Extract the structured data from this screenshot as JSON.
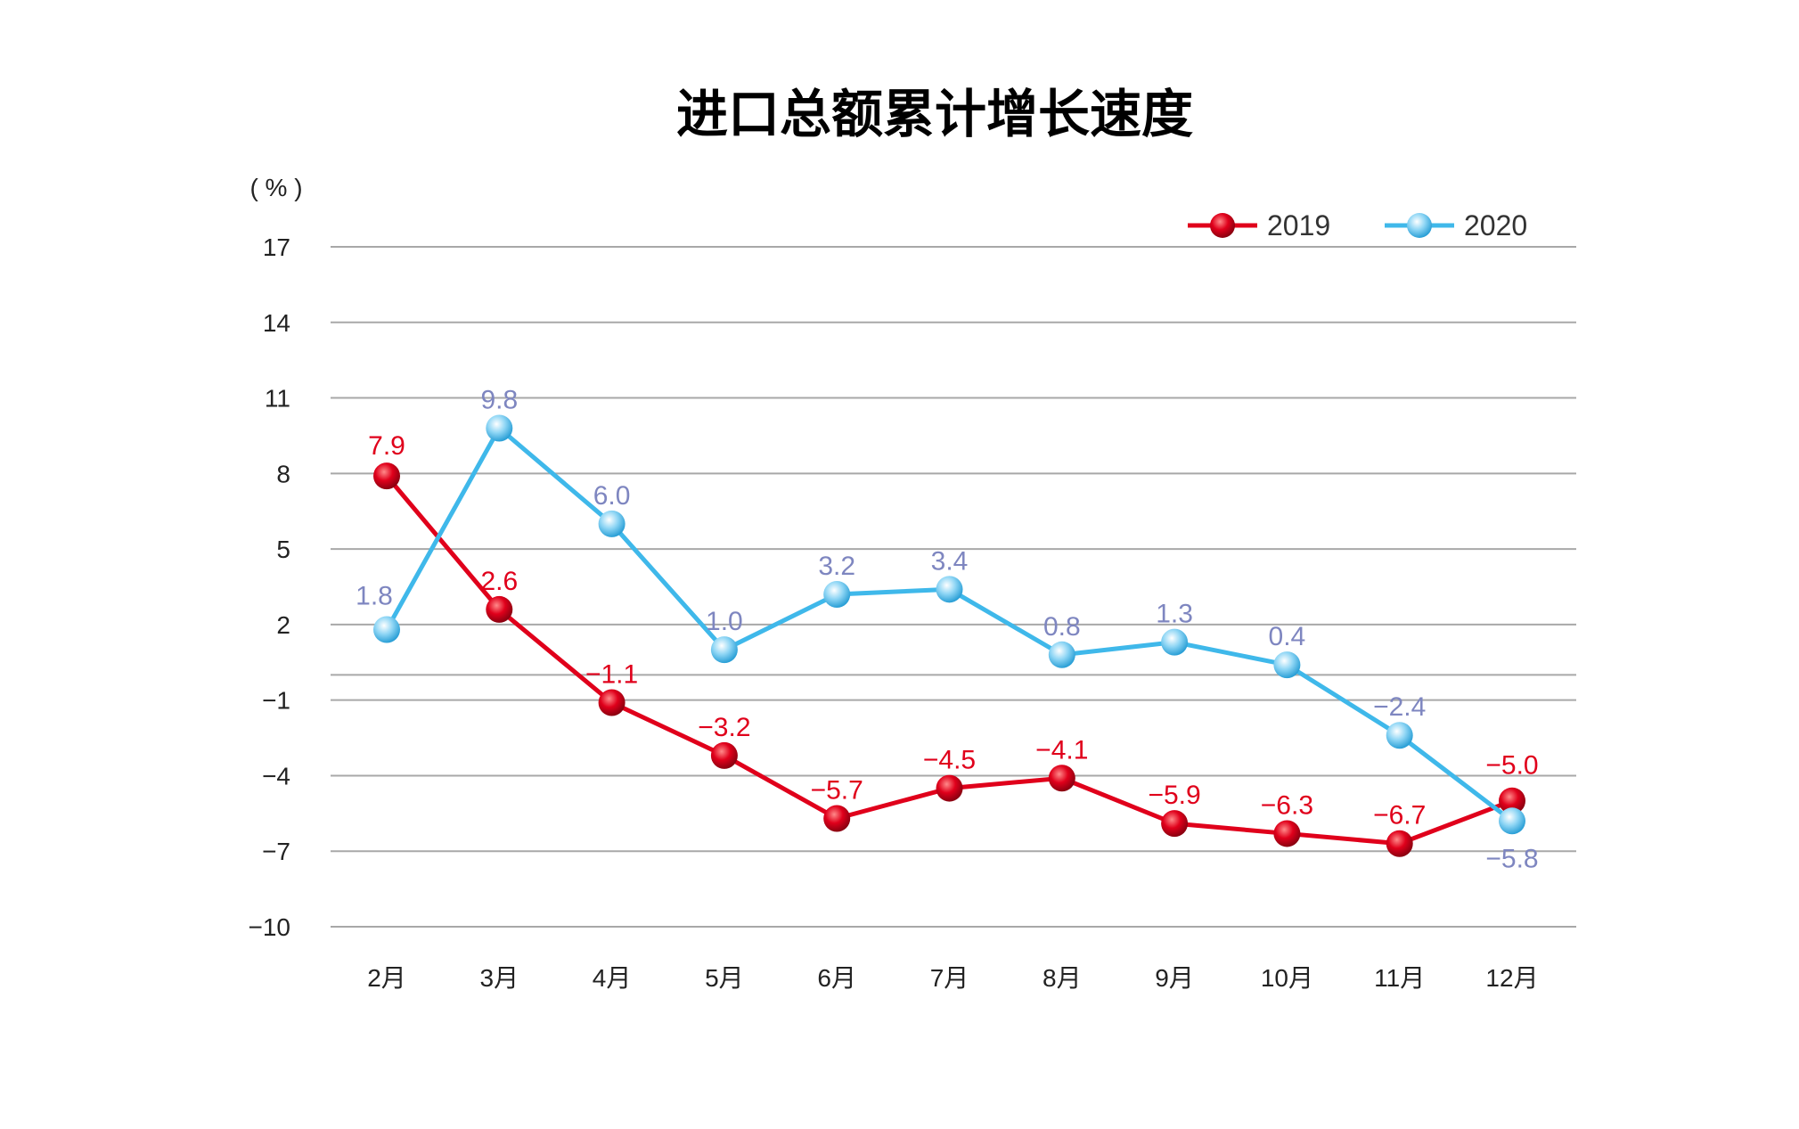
{
  "chart_data": {
    "type": "line",
    "title": "进口总额累计增长速度",
    "ylabel": "( % )",
    "xlabel": "",
    "categories": [
      "2月",
      "3月",
      "4月",
      "5月",
      "6月",
      "7月",
      "8月",
      "9月",
      "10月",
      "11月",
      "12月"
    ],
    "y_ticks": [
      17,
      14,
      11,
      8,
      5,
      2,
      -1,
      -4,
      -7,
      -10
    ],
    "y_tick_labels": [
      "17",
      "14",
      "11",
      "8",
      "5",
      "2",
      "−1",
      "−4",
      "−7",
      "−10"
    ],
    "ylim": [
      -10,
      17
    ],
    "grid": true,
    "legend": "top-right",
    "series": [
      {
        "name": "2019",
        "color": "#e0001b",
        "values": [
          7.9,
          2.6,
          -1.1,
          -3.2,
          -5.7,
          -4.5,
          -4.1,
          -5.9,
          -6.3,
          -6.7,
          -5.0
        ],
        "labels": [
          "7.9",
          "2.6",
          "−1.1",
          "−3.2",
          "−5.7",
          "−4.5",
          "−4.1",
          "−5.9",
          "−6.3",
          "−6.7",
          "−5.0"
        ],
        "label_color": "#e0001b"
      },
      {
        "name": "2020",
        "color": "#3fb8ea",
        "values": [
          1.8,
          9.8,
          6.0,
          1.0,
          3.2,
          3.4,
          0.8,
          1.3,
          0.4,
          -2.4,
          -5.8
        ],
        "labels": [
          "1.8",
          "9.8",
          "6.0",
          "1.0",
          "3.2",
          "3.4",
          "0.8",
          "1.3",
          "0.4",
          "−2.4",
          "−5.8"
        ],
        "label_color": "#7e86c0"
      }
    ]
  }
}
